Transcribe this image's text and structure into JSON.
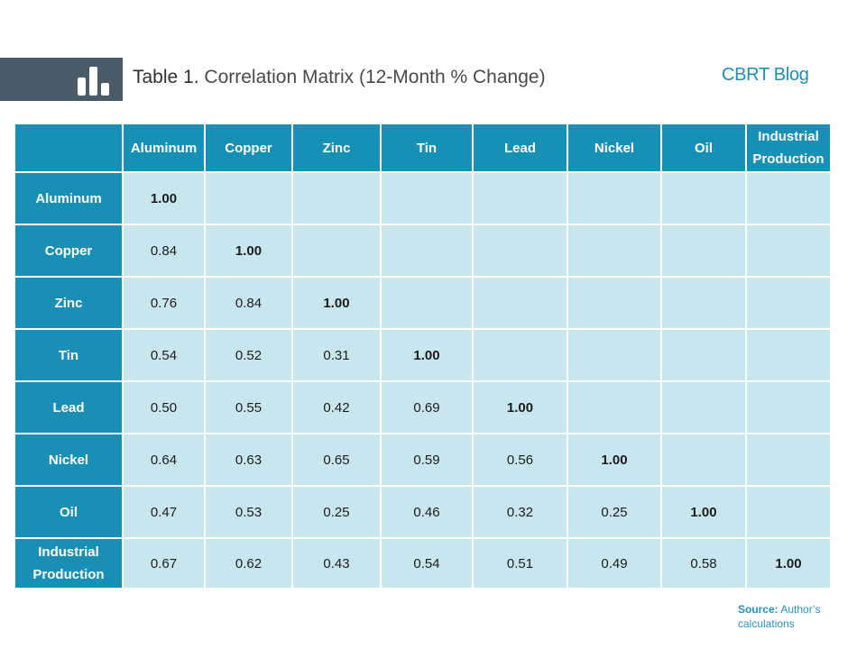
{
  "header": {
    "title_prefix": "Table 1.",
    "title_text": "Correlation Matrix (12-Month % Change)",
    "brand": "CBRT Blog"
  },
  "table": {
    "columns": [
      "Aluminum",
      "Copper",
      "Zinc",
      "Tin",
      "Lead",
      "Nickel",
      "Oil",
      "Industrial Production"
    ],
    "rows": [
      {
        "label": "Aluminum",
        "values": [
          "1.00"
        ]
      },
      {
        "label": "Copper",
        "values": [
          "0.84",
          "1.00"
        ]
      },
      {
        "label": "Zinc",
        "values": [
          "0.76",
          "0.84",
          "1.00"
        ]
      },
      {
        "label": "Tin",
        "values": [
          "0.54",
          "0.52",
          "0.31",
          "1.00"
        ]
      },
      {
        "label": "Lead",
        "values": [
          "0.50",
          "0.55",
          "0.42",
          "0.69",
          "1.00"
        ]
      },
      {
        "label": "Nickel",
        "values": [
          "0.64",
          "0.63",
          "0.65",
          "0.59",
          "0.56",
          "1.00"
        ]
      },
      {
        "label": "Oil",
        "values": [
          "0.47",
          "0.53",
          "0.25",
          "0.46",
          "0.32",
          "0.25",
          "1.00"
        ]
      },
      {
        "label": "Industrial Production",
        "values": [
          "0.67",
          "0.62",
          "0.43",
          "0.54",
          "0.51",
          "0.49",
          "0.58",
          "1.00"
        ]
      }
    ]
  },
  "footer": {
    "source_label": "Source:",
    "source_text": "Author’s calculations"
  },
  "colors": {
    "header_fill": "#1790b6",
    "cell_fill": "#c8e6ee",
    "band": "#4a5a66",
    "brand": "#1f8fb5"
  }
}
